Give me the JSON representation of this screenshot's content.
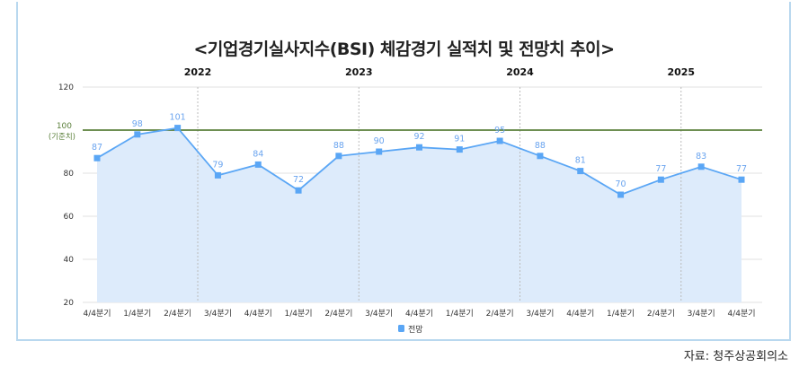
{
  "chart_data": {
    "type": "area",
    "title": "<기업경기실사지수(BSI) 체감경기 실적치 및 전망치 추이>",
    "categories": [
      "4/4분기",
      "1/4분기",
      "2/4분기",
      "3/4분기",
      "4/4분기",
      "1/4분기",
      "2/4분기",
      "3/4분기",
      "4/4분기",
      "1/4분기",
      "2/4분기",
      "3/4분기",
      "4/4분기",
      "1/4분기",
      "2/4분기",
      "3/4분기",
      "4/4분기"
    ],
    "year_labels": [
      "2022",
      "2023",
      "2024",
      "2025"
    ],
    "series": [
      {
        "name": "전망",
        "values": [
          87,
          98,
          101,
          79,
          84,
          72,
          88,
          90,
          92,
          91,
          95,
          88,
          81,
          70,
          77,
          83,
          77
        ],
        "color": "#5aa6f5"
      }
    ],
    "reference_line": {
      "value": 100,
      "label": "100",
      "sublabel": "(기준치)",
      "color": "#5a7f3a"
    },
    "yticks": [
      20,
      40,
      60,
      80,
      100,
      120
    ],
    "ylim": [
      20,
      120
    ],
    "grid": true,
    "legend": "bottom",
    "fill_color": "#ddebfb"
  },
  "source": "자료: 청주상공회의소"
}
